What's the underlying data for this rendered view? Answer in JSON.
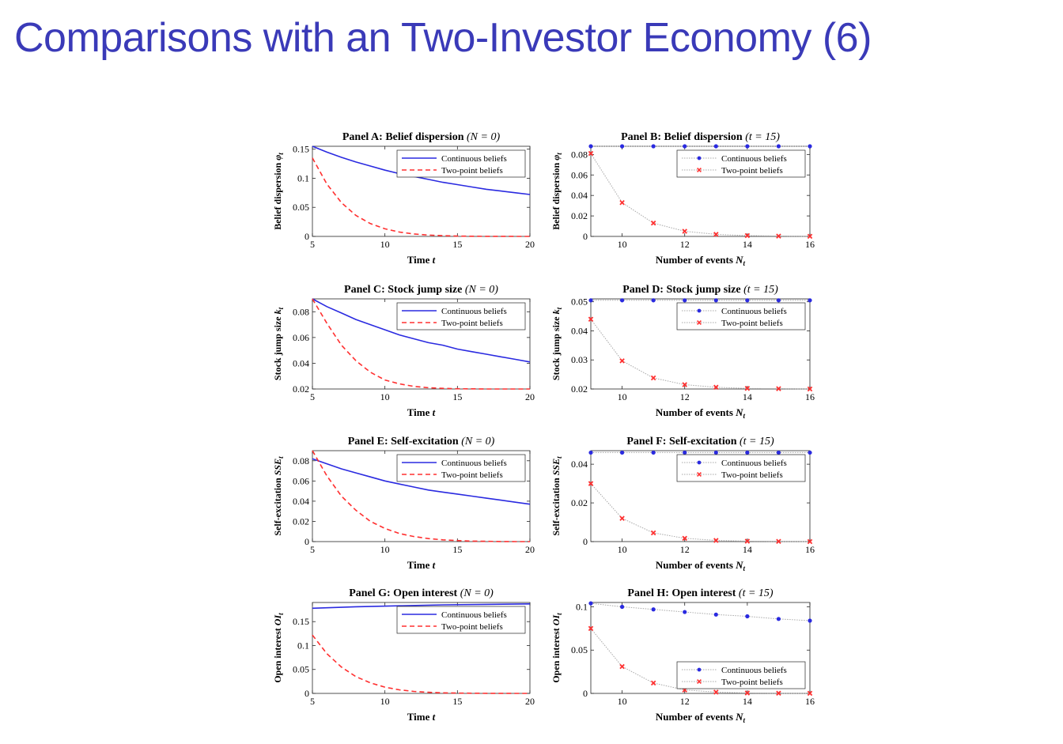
{
  "slide": {
    "title": "Comparisons with an Two-Investor Economy (6)"
  },
  "colors": {
    "title": "#3a3ab8",
    "continuous": "#2a2ae0",
    "two_point": "#ff3030",
    "connector": "#a8a8a8"
  },
  "chart_data": [
    {
      "id": "A",
      "type": "line",
      "title": "Panel A: Belief dispersion",
      "title_math": "(N_t = 0)",
      "xlabel": "Time t",
      "ylabel": "Belief dispersion φ_t",
      "xlim": [
        5,
        20
      ],
      "ylim": [
        0,
        0.155
      ],
      "xticks": [
        5,
        10,
        15,
        20
      ],
      "xtick_labels": [
        "5",
        "10",
        "15",
        "20"
      ],
      "yticks": [
        0,
        0.05,
        0.1,
        0.15
      ],
      "ytick_labels": [
        "0",
        "0.05",
        "0.1",
        "0.15"
      ],
      "legend": "top-right",
      "series": [
        {
          "name": "Continuous beliefs",
          "style": "solid",
          "x": [
            5,
            6,
            7,
            8,
            9,
            10,
            11,
            12,
            13,
            14,
            15,
            16,
            17,
            18,
            19,
            20
          ],
          "y": [
            0.155,
            0.145,
            0.136,
            0.128,
            0.121,
            0.114,
            0.108,
            0.103,
            0.098,
            0.093,
            0.089,
            0.085,
            0.081,
            0.078,
            0.075,
            0.072
          ]
        },
        {
          "name": "Two-point beliefs",
          "style": "dashed",
          "x": [
            5,
            6,
            7,
            8,
            9,
            10,
            11,
            12,
            13,
            14,
            15,
            16,
            17,
            18,
            19,
            20
          ],
          "y": [
            0.135,
            0.09,
            0.058,
            0.036,
            0.022,
            0.013,
            0.0075,
            0.0042,
            0.0023,
            0.0012,
            0.0006,
            0.0003,
            0.00015,
            0.0001,
            0.0,
            0.0
          ]
        }
      ]
    },
    {
      "id": "B",
      "type": "line",
      "title": "Panel B: Belief dispersion",
      "title_math": "(t = 15)",
      "xlabel": "Number of events N_t",
      "ylabel": "Belief dispersion φ_t",
      "xlim": [
        9,
        16
      ],
      "ylim": [
        0,
        0.088
      ],
      "xticks": [
        10,
        12,
        14,
        16
      ],
      "xtick_labels": [
        "10",
        "12",
        "14",
        "16"
      ],
      "yticks": [
        0,
        0.02,
        0.04,
        0.06,
        0.08
      ],
      "ytick_labels": [
        "0",
        "0.02",
        "0.04",
        "0.06",
        "0.08"
      ],
      "legend": "top-right",
      "series": [
        {
          "name": "Continuous beliefs",
          "style": "dotted-markers",
          "marker": "dot",
          "x": [
            9,
            10,
            11,
            12,
            13,
            14,
            15,
            16
          ],
          "y": [
            0.088,
            0.088,
            0.088,
            0.088,
            0.088,
            0.088,
            0.088,
            0.088
          ]
        },
        {
          "name": "Two-point beliefs",
          "style": "dotted-markers",
          "marker": "cross",
          "x": [
            9,
            10,
            11,
            12,
            13,
            14,
            15,
            16
          ],
          "y": [
            0.081,
            0.033,
            0.013,
            0.005,
            0.002,
            0.0008,
            0.0003,
            0.0001
          ]
        }
      ]
    },
    {
      "id": "C",
      "type": "line",
      "title": "Panel C: Stock jump size",
      "title_math": "(N_t = 0)",
      "xlabel": "Time t",
      "ylabel": "Stock jump size k_t",
      "xlim": [
        5,
        20
      ],
      "ylim": [
        0.02,
        0.09
      ],
      "xticks": [
        5,
        10,
        15,
        20
      ],
      "xtick_labels": [
        "5",
        "10",
        "15",
        "20"
      ],
      "yticks": [
        0.02,
        0.04,
        0.06,
        0.08
      ],
      "ytick_labels": [
        "0.02",
        "0.04",
        "0.06",
        "0.08"
      ],
      "legend": "top-right",
      "series": [
        {
          "name": "Continuous beliefs",
          "style": "solid",
          "x": [
            5,
            6,
            7,
            8,
            9,
            10,
            11,
            12,
            13,
            14,
            15,
            16,
            17,
            18,
            19,
            20
          ],
          "y": [
            0.09,
            0.084,
            0.079,
            0.074,
            0.07,
            0.066,
            0.062,
            0.059,
            0.056,
            0.054,
            0.051,
            0.049,
            0.047,
            0.045,
            0.043,
            0.041
          ]
        },
        {
          "name": "Two-point beliefs",
          "style": "dashed",
          "x": [
            5,
            6,
            7,
            8,
            9,
            10,
            11,
            12,
            13,
            14,
            15,
            16,
            17,
            18,
            19,
            20
          ],
          "y": [
            0.09,
            0.071,
            0.054,
            0.042,
            0.033,
            0.027,
            0.024,
            0.022,
            0.021,
            0.0205,
            0.0202,
            0.0201,
            0.02,
            0.02,
            0.02,
            0.02
          ]
        }
      ]
    },
    {
      "id": "D",
      "type": "line",
      "title": "Panel D: Stock jump size",
      "title_math": "(t = 15)",
      "xlabel": "Number of events N_t",
      "ylabel": "Stock jump size k_t",
      "xlim": [
        9,
        16
      ],
      "ylim": [
        0.02,
        0.051
      ],
      "xticks": [
        10,
        12,
        14,
        16
      ],
      "xtick_labels": [
        "10",
        "12",
        "14",
        "16"
      ],
      "yticks": [
        0.02,
        0.03,
        0.04,
        0.05
      ],
      "ytick_labels": [
        "0.02",
        "0.03",
        "0.04",
        "0.05"
      ],
      "legend": "top-right",
      "series": [
        {
          "name": "Continuous beliefs",
          "style": "dotted-markers",
          "marker": "dot",
          "x": [
            9,
            10,
            11,
            12,
            13,
            14,
            15,
            16
          ],
          "y": [
            0.0505,
            0.0505,
            0.0505,
            0.0505,
            0.0505,
            0.0505,
            0.0505,
            0.0505
          ]
        },
        {
          "name": "Two-point beliefs",
          "style": "dotted-markers",
          "marker": "cross",
          "x": [
            9,
            10,
            11,
            12,
            13,
            14,
            15,
            16
          ],
          "y": [
            0.044,
            0.0297,
            0.0238,
            0.0215,
            0.0206,
            0.0202,
            0.0201,
            0.02
          ]
        }
      ]
    },
    {
      "id": "E",
      "type": "line",
      "title": "Panel E: Self-excitation",
      "title_math": "(N_t = 0)",
      "xlabel": "Time t",
      "ylabel": "Self-excitation SSE_t",
      "xlim": [
        5,
        20
      ],
      "ylim": [
        0,
        0.09
      ],
      "xticks": [
        5,
        10,
        15,
        20
      ],
      "xtick_labels": [
        "5",
        "10",
        "15",
        "20"
      ],
      "yticks": [
        0,
        0.02,
        0.04,
        0.06,
        0.08
      ],
      "ytick_labels": [
        "0",
        "0.02",
        "0.04",
        "0.06",
        "0.08"
      ],
      "legend": "top-right",
      "series": [
        {
          "name": "Continuous beliefs",
          "style": "solid",
          "x": [
            5,
            6,
            7,
            8,
            9,
            10,
            11,
            12,
            13,
            14,
            15,
            16,
            17,
            18,
            19,
            20
          ],
          "y": [
            0.082,
            0.077,
            0.072,
            0.068,
            0.064,
            0.06,
            0.057,
            0.054,
            0.051,
            0.049,
            0.047,
            0.045,
            0.043,
            0.041,
            0.039,
            0.037
          ]
        },
        {
          "name": "Two-point beliefs",
          "style": "dashed",
          "x": [
            5,
            6,
            7,
            8,
            9,
            10,
            11,
            12,
            13,
            14,
            15,
            16,
            17,
            18,
            19,
            20
          ],
          "y": [
            0.09,
            0.065,
            0.045,
            0.031,
            0.02,
            0.013,
            0.008,
            0.005,
            0.003,
            0.0017,
            0.001,
            0.0005,
            0.0003,
            0.0001,
            0.0,
            0.0
          ]
        }
      ]
    },
    {
      "id": "F",
      "type": "line",
      "title": "Panel F: Self-excitation",
      "title_math": "(t = 15)",
      "xlabel": "Number of events N_t",
      "ylabel": "Self-excitation SSE_t",
      "xlim": [
        9,
        16
      ],
      "ylim": [
        0,
        0.047
      ],
      "xticks": [
        10,
        12,
        14,
        16
      ],
      "xtick_labels": [
        "10",
        "12",
        "14",
        "16"
      ],
      "yticks": [
        0,
        0.02,
        0.04
      ],
      "ytick_labels": [
        "0",
        "0.02",
        "0.04"
      ],
      "legend": "top-right",
      "series": [
        {
          "name": "Continuous beliefs",
          "style": "dotted-markers",
          "marker": "dot",
          "x": [
            9,
            10,
            11,
            12,
            13,
            14,
            15,
            16
          ],
          "y": [
            0.046,
            0.046,
            0.046,
            0.046,
            0.046,
            0.046,
            0.046,
            0.046
          ]
        },
        {
          "name": "Two-point beliefs",
          "style": "dotted-markers",
          "marker": "cross",
          "x": [
            9,
            10,
            11,
            12,
            13,
            14,
            15,
            16
          ],
          "y": [
            0.03,
            0.012,
            0.0045,
            0.0017,
            0.0006,
            0.0002,
            0.0001,
            0.0
          ]
        }
      ]
    },
    {
      "id": "G",
      "type": "line",
      "title": "Panel G: Open interest",
      "title_math": "(N_t = 0)",
      "xlabel": "Time t",
      "ylabel": "Open interest OI_t",
      "xlim": [
        5,
        20
      ],
      "ylim": [
        0,
        0.19
      ],
      "xticks": [
        5,
        10,
        15,
        20
      ],
      "xtick_labels": [
        "5",
        "10",
        "15",
        "20"
      ],
      "yticks": [
        0,
        0.05,
        0.1,
        0.15
      ],
      "ytick_labels": [
        "0",
        "0.05",
        "0.1",
        "0.15"
      ],
      "legend": "top-right",
      "series": [
        {
          "name": "Continuous beliefs",
          "style": "solid",
          "x": [
            5,
            8,
            11,
            14,
            17,
            20
          ],
          "y": [
            0.178,
            0.181,
            0.183,
            0.185,
            0.186,
            0.187
          ]
        },
        {
          "name": "Two-point beliefs",
          "style": "dashed",
          "x": [
            5,
            6,
            7,
            8,
            9,
            10,
            11,
            12,
            13,
            14,
            15,
            16,
            17,
            18,
            19,
            20
          ],
          "y": [
            0.122,
            0.083,
            0.055,
            0.035,
            0.022,
            0.013,
            0.0075,
            0.0042,
            0.0023,
            0.0012,
            0.0006,
            0.0003,
            0.00015,
            0.0001,
            0.0,
            0.0
          ]
        }
      ]
    },
    {
      "id": "H",
      "type": "line",
      "title": "Panel H: Open interest",
      "title_math": "(t = 15)",
      "xlabel": "Number of events N_t",
      "ylabel": "Open interest OI_t",
      "xlim": [
        9,
        16
      ],
      "ylim": [
        0,
        0.105
      ],
      "xticks": [
        10,
        12,
        14,
        16
      ],
      "xtick_labels": [
        "10",
        "12",
        "14",
        "16"
      ],
      "yticks": [
        0,
        0.05,
        0.1
      ],
      "ytick_labels": [
        "0",
        "0.05",
        "0.1"
      ],
      "legend": "bottom-right",
      "series": [
        {
          "name": "Continuous beliefs",
          "style": "dotted-markers",
          "marker": "dot",
          "x": [
            9,
            10,
            11,
            12,
            13,
            14,
            15,
            16
          ],
          "y": [
            0.104,
            0.1,
            0.097,
            0.094,
            0.091,
            0.089,
            0.086,
            0.084
          ]
        },
        {
          "name": "Two-point beliefs",
          "style": "dotted-markers",
          "marker": "cross",
          "x": [
            9,
            10,
            11,
            12,
            13,
            14,
            15,
            16
          ],
          "y": [
            0.075,
            0.031,
            0.012,
            0.004,
            0.0015,
            0.0005,
            0.0002,
            0.0001
          ]
        }
      ]
    }
  ]
}
